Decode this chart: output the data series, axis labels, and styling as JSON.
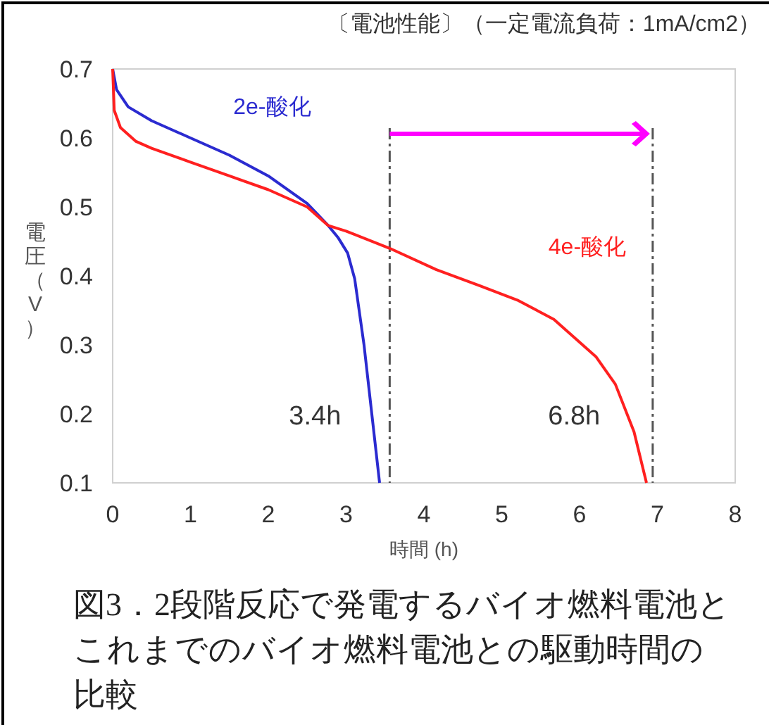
{
  "chart_data": {
    "type": "line",
    "title": "〔電池性能〕（一定電流負荷：1mA/cm2）",
    "xlabel": "時間 (h)",
    "ylabel": "電圧（V）",
    "xlim": [
      0,
      8
    ],
    "xticks": [
      0,
      1,
      2,
      3,
      4,
      5,
      6,
      7,
      8
    ],
    "ylim": [
      0.1,
      0.7
    ],
    "yticks": [
      0.1,
      0.2,
      0.3,
      0.4,
      0.5,
      0.6,
      0.7
    ],
    "grid": false,
    "series": [
      {
        "name": "2e-酸化",
        "color": "#2b2bd0",
        "x": [
          0,
          0.05,
          0.2,
          0.5,
          1,
          1.5,
          2,
          2.5,
          2.77,
          2.9,
          3.02,
          3.11,
          3.23,
          3.33,
          3.43
        ],
        "values": [
          0.7,
          0.67,
          0.645,
          0.625,
          0.6,
          0.575,
          0.545,
          0.505,
          0.473,
          0.455,
          0.433,
          0.396,
          0.3,
          0.2,
          0.1
        ]
      },
      {
        "name": "4e-酸化",
        "color": "#ff2020",
        "x": [
          0,
          0.02,
          0.1,
          0.3,
          0.5,
          1,
          1.5,
          2,
          2.5,
          2.77,
          3,
          3.56,
          4.16,
          4.71,
          5.2,
          5.67,
          6.21,
          6.46,
          6.7,
          6.86
        ],
        "values": [
          0.7,
          0.64,
          0.615,
          0.595,
          0.585,
          0.565,
          0.545,
          0.525,
          0.5,
          0.473,
          0.465,
          0.44,
          0.409,
          0.386,
          0.365,
          0.337,
          0.283,
          0.243,
          0.174,
          0.1
        ]
      }
    ],
    "ref_lines": [
      {
        "axis": "x",
        "value": 3.56,
        "color": "#555555",
        "line_style": "dashdot"
      },
      {
        "axis": "x",
        "value": 6.94,
        "color": "#555555",
        "line_style": "dashdot"
      }
    ],
    "annotations": [
      "3.4h",
      "6.8h",
      "図3．2段階反応で発電するバイオ燃料電池とこれまでのバイオ燃料電池との駆動時間の比較"
    ]
  }
}
